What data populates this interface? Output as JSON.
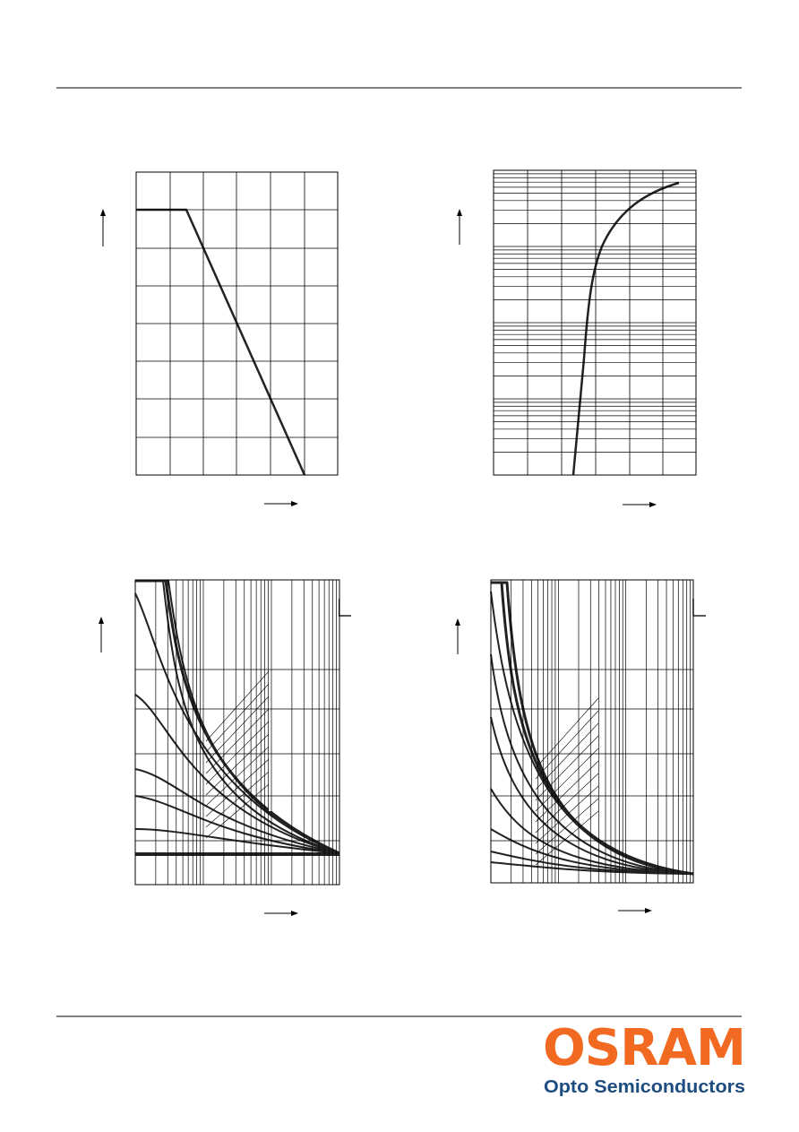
{
  "footer": {
    "brand": "OSRAM",
    "tagline": "Opto Semiconductors"
  }
}
